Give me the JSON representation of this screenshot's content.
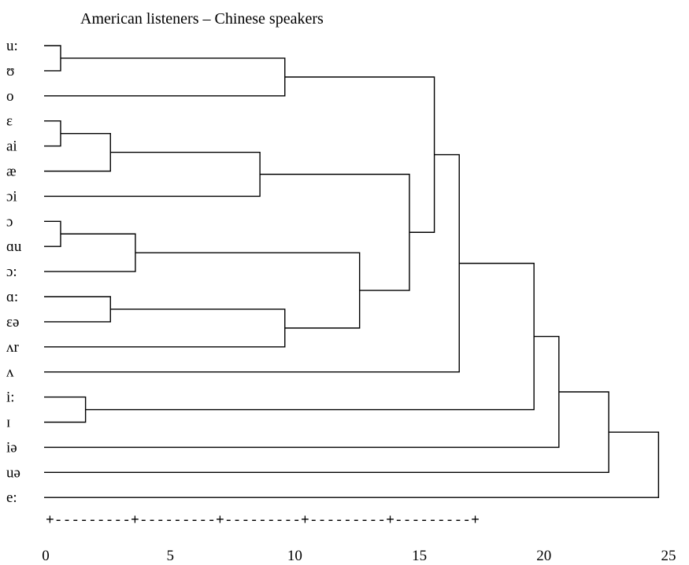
{
  "title": "American listeners – Chinese speakers",
  "axis": {
    "ticks": [
      0,
      5,
      10,
      15,
      20,
      25
    ],
    "range": [
      0,
      25
    ],
    "style": "+---------+---------+---------+---------+---------+"
  },
  "leaves": [
    "u:",
    "ʊ",
    "o",
    "ɛ",
    "ai",
    "æ",
    "ɔi",
    "ɔ",
    "ɑu",
    "ɔ:",
    "ɑ:",
    "ɛə",
    "ʌr",
    "ʌ",
    "i:",
    "ɪ",
    "iə",
    "uə",
    "e:"
  ],
  "merges": [
    {
      "a": "u:",
      "b": "ʊ",
      "height": 0.6
    },
    {
      "a": "ɛ",
      "b": "ai",
      "height": 0.6
    },
    {
      "a": "ɔ",
      "b": "ɑu",
      "height": 0.6
    },
    {
      "a": "i:",
      "b": "ɪ",
      "height": 1.6
    },
    {
      "a": "ɛ,ai",
      "b": "æ",
      "height": 2.6
    },
    {
      "a": "ɑ:",
      "b": "ɛə",
      "height": 2.6
    },
    {
      "a": "ɔ,ɑu",
      "b": "ɔ:",
      "height": 3.6
    },
    {
      "a": "ɛ,ai,æ",
      "b": "ɔi",
      "height": 8.6
    },
    {
      "a": "u:,ʊ",
      "b": "o",
      "height": 9.6
    },
    {
      "a": "ɑ:,ɛə",
      "b": "ʌr",
      "height": 9.6
    },
    {
      "a": "ɔ,ɑu,ɔ:",
      "b": "ɑ:,ɛə,ʌr",
      "height": 12.6
    },
    {
      "a": "ɛ,ai,æ,ɔi",
      "b": "ɔ,ɑu,ɔ:,ɑ:,ɛə,ʌr",
      "height": 14.6
    },
    {
      "a": "u:,ʊ,o",
      "b": "ɛ..ʌr",
      "height": 15.6
    },
    {
      "a": "u:..ʌr",
      "b": "ʌ",
      "height": 16.6
    },
    {
      "a": "u:..ʌ",
      "b": "i:,ɪ",
      "height": 19.6
    },
    {
      "a": "u:..ɪ",
      "b": "iə",
      "height": 20.6
    },
    {
      "a": "u:..iə",
      "b": "uə",
      "height": 22.6
    },
    {
      "a": "u:..uə",
      "b": "e:",
      "height": 24.6
    }
  ]
}
